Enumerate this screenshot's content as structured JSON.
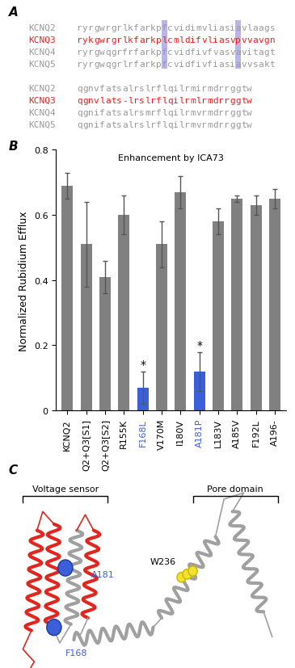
{
  "panel_labels": [
    "A",
    "B",
    "C"
  ],
  "alignment": {
    "blocks": [
      [
        {
          "name": "KCNQ2",
          "sequence": "ryrgwrgrlkfarkpfcvidimvliasiavlaags"
        },
        {
          "name": "KCNQ3",
          "sequence": "rykgwrgrlkfarkplcmldifvliasvpvvavgn"
        },
        {
          "name": "KCNQ4",
          "sequence": "ryrgwqgrfrfarkpfcvidfivfvasvavitagt"
        },
        {
          "name": "KCNQ5",
          "sequence": "ryrgwqgrlrfarkpfcvidfivfiasiavvsakt"
        }
      ],
      [
        {
          "name": "KCNQ2",
          "sequence": "qgnvfatsalrslrflqilrmirmdrrggtw"
        },
        {
          "name": "KCNQ3",
          "sequence": "qgnvlats-lrslrflqilrmlrmdrrggtw"
        },
        {
          "name": "KCNQ4",
          "sequence": "qgnifatsalrsmrflqilrmvrmdrrggtw"
        },
        {
          "name": "KCNQ5",
          "sequence": "qgnifatsalrslrflqilrmvrmdrrggtw"
        }
      ]
    ],
    "highlight_columns": [
      16,
      29
    ],
    "highlight_color": "#b9b4ea",
    "emphasized": "KCNQ3",
    "emphasis_color": "#e8231f",
    "color": "#9a9a9a"
  },
  "chart_data": {
    "type": "bar",
    "title": "Enhancement by ICA73",
    "ylabel": "Normalized Rubidium Efflux",
    "categories": [
      "KCNQ2",
      "Q2+Q3[S1]",
      "Q2+Q3[S2]",
      "R155K",
      "F168L",
      "V170M",
      "I180V",
      "A181P",
      "L183V",
      "A185V",
      "F192L",
      "A196-"
    ],
    "values": [
      0.69,
      0.51,
      0.41,
      0.6,
      0.07,
      0.51,
      0.67,
      0.12,
      0.58,
      0.65,
      0.63,
      0.65
    ],
    "errors": [
      0.04,
      0.13,
      0.05,
      0.06,
      0.05,
      0.07,
      0.05,
      0.06,
      0.04,
      0.01,
      0.03,
      0.03
    ],
    "colors": [
      "#808080",
      "#808080",
      "#808080",
      "#808080",
      "#3b5fd9",
      "#808080",
      "#808080",
      "#3b5fd9",
      "#808080",
      "#808080",
      "#808080",
      "#808080"
    ],
    "ylim": [
      0,
      0.8
    ],
    "yticks": [
      0,
      0.2,
      0.4,
      0.6,
      0.8
    ],
    "annotations": [
      {
        "category": "F168L",
        "text": "*"
      },
      {
        "category": "A181P",
        "text": "*"
      }
    ]
  },
  "structure": {
    "regions": [
      "Voltage sensor",
      "Pore domain"
    ],
    "residues": [
      {
        "label": "A181",
        "color": "#3b5fd9",
        "label_color": "#3b5fd9"
      },
      {
        "label": "F168",
        "color": "#3b5fd9",
        "label_color": "#3b5fd9"
      },
      {
        "label": "W236",
        "color": "#f2e22e",
        "label_color": "#000000"
      }
    ],
    "colors": [
      "#e0261f",
      "#a0a0a0"
    ]
  }
}
